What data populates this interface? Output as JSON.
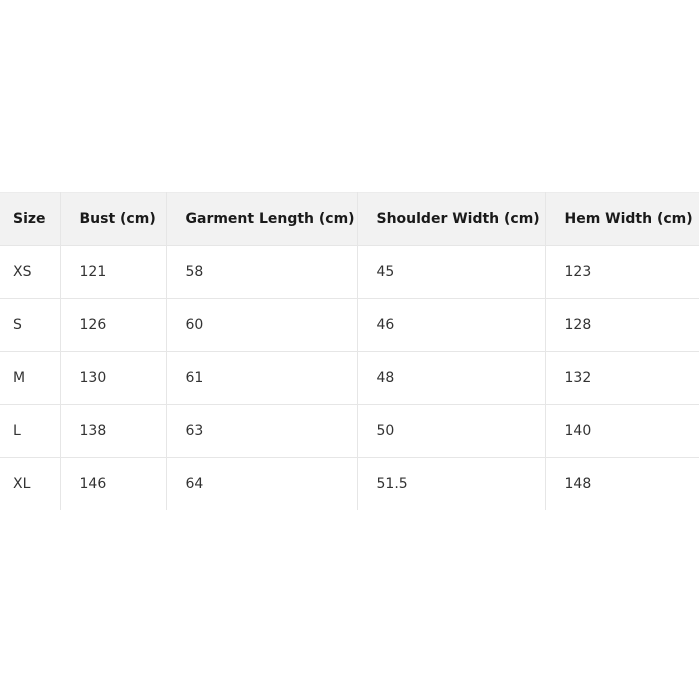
{
  "table": {
    "headers": [
      "Size",
      "Bust (cm)",
      "Garment Length (cm)",
      "Shoulder Width (cm)",
      "Hem Width (cm)"
    ],
    "rows": [
      [
        "XS",
        "121",
        "58",
        "45",
        "123"
      ],
      [
        "S",
        "126",
        "60",
        "46",
        "128"
      ],
      [
        "M",
        "130",
        "61",
        "48",
        "132"
      ],
      [
        "L",
        "138",
        "63",
        "50",
        "140"
      ],
      [
        "XL",
        "146",
        "64",
        "51.5",
        "148"
      ]
    ]
  }
}
